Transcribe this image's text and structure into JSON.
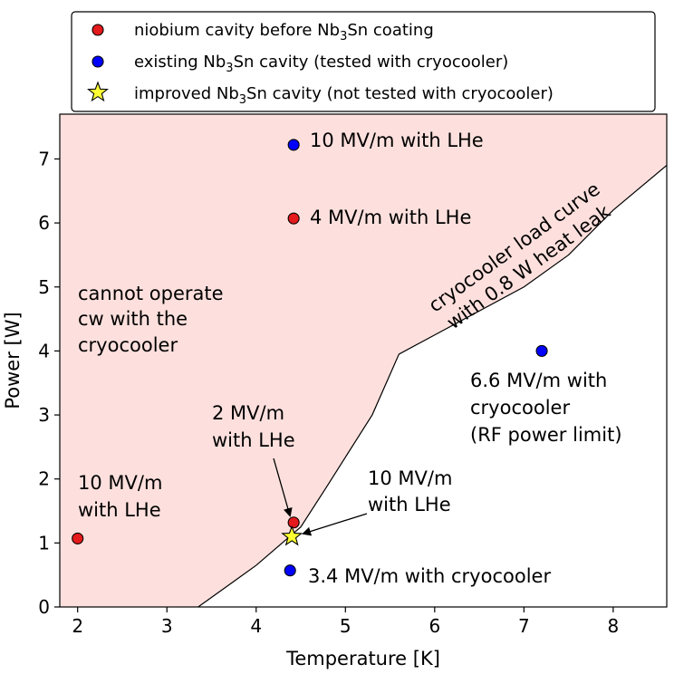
{
  "chart_data": {
    "type": "scatter",
    "xlabel": "Temperature [K]",
    "ylabel": "Power [W]",
    "xlim": [
      1.8,
      8.6
    ],
    "ylim": [
      0,
      7.7
    ],
    "xticks": [
      2,
      3,
      4,
      5,
      6,
      7,
      8
    ],
    "yticks": [
      0,
      1,
      2,
      3,
      4,
      5,
      6,
      7
    ],
    "grid": false,
    "legend_placement": "top",
    "colors": {
      "region": "#fde0dd",
      "red": "#e41a1c",
      "blue": "#0000ff",
      "yellow": "#ffff33"
    },
    "legend": [
      {
        "marker": "circle",
        "color": "#e41a1c",
        "pre": "niobium cavity before Nb",
        "sub": "3",
        "post": "Sn coating"
      },
      {
        "marker": "circle",
        "color": "#0000ff",
        "pre": "existing Nb",
        "sub": "3",
        "post": "Sn cavity (tested with cryocooler)"
      },
      {
        "marker": "star",
        "color": "#ffff33",
        "pre": "improved Nb",
        "sub": "3",
        "post": "Sn cavity (not tested with cryocooler)"
      }
    ],
    "curve": [
      [
        3.35,
        0.0
      ],
      [
        3.6,
        0.25
      ],
      [
        4.0,
        0.65
      ],
      [
        4.5,
        1.25
      ],
      [
        4.8,
        1.9
      ],
      [
        5.3,
        3.0
      ],
      [
        5.6,
        3.95
      ],
      [
        6.0,
        4.25
      ],
      [
        7.0,
        5.0
      ],
      [
        7.5,
        5.5
      ],
      [
        8.0,
        6.2
      ],
      [
        8.6,
        6.9
      ]
    ],
    "points": [
      {
        "x": 2.0,
        "y": 1.07,
        "color": "#e41a1c",
        "marker": "circle"
      },
      {
        "x": 4.42,
        "y": 1.32,
        "color": "#e41a1c",
        "marker": "circle"
      },
      {
        "x": 4.42,
        "y": 6.07,
        "color": "#e41a1c",
        "marker": "circle"
      },
      {
        "x": 4.38,
        "y": 0.57,
        "color": "#0000ff",
        "marker": "circle"
      },
      {
        "x": 4.42,
        "y": 7.22,
        "color": "#0000ff",
        "marker": "circle"
      },
      {
        "x": 7.2,
        "y": 4.0,
        "color": "#0000ff",
        "marker": "circle"
      },
      {
        "x": 4.4,
        "y": 1.1,
        "color": "#ffff33",
        "marker": "star"
      }
    ],
    "annotations": {
      "region_label": [
        "cannot operate",
        "cw with the",
        "cryocooler"
      ],
      "curve_label": [
        "cryocooler load curve",
        "with 0.8 W heat leak"
      ],
      "a_10_lhe_top": "10 MV/m with LHe",
      "a_4_lhe": "4 MV/m with LHe",
      "a_66": [
        "6.6 MV/m with",
        "cryocooler",
        "(RF power limit)"
      ],
      "a_2_lhe": [
        "2 MV/m",
        "with LHe"
      ],
      "a_10_lhe_mid": [
        "10 MV/m",
        "with LHe"
      ],
      "a_10_lhe_left": [
        "10 MV/m",
        "with LHe"
      ],
      "a_34": "3.4 MV/m with cryocooler"
    }
  }
}
